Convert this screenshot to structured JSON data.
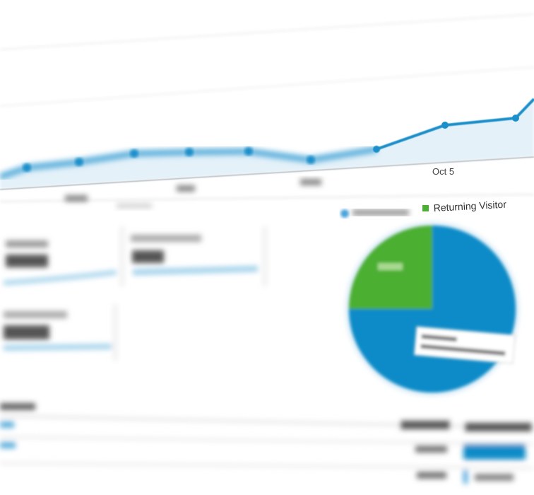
{
  "line_chart": {
    "x_label": "Oct 5"
  },
  "pie_chart": {
    "legend": "Returning Visitor"
  }
}
